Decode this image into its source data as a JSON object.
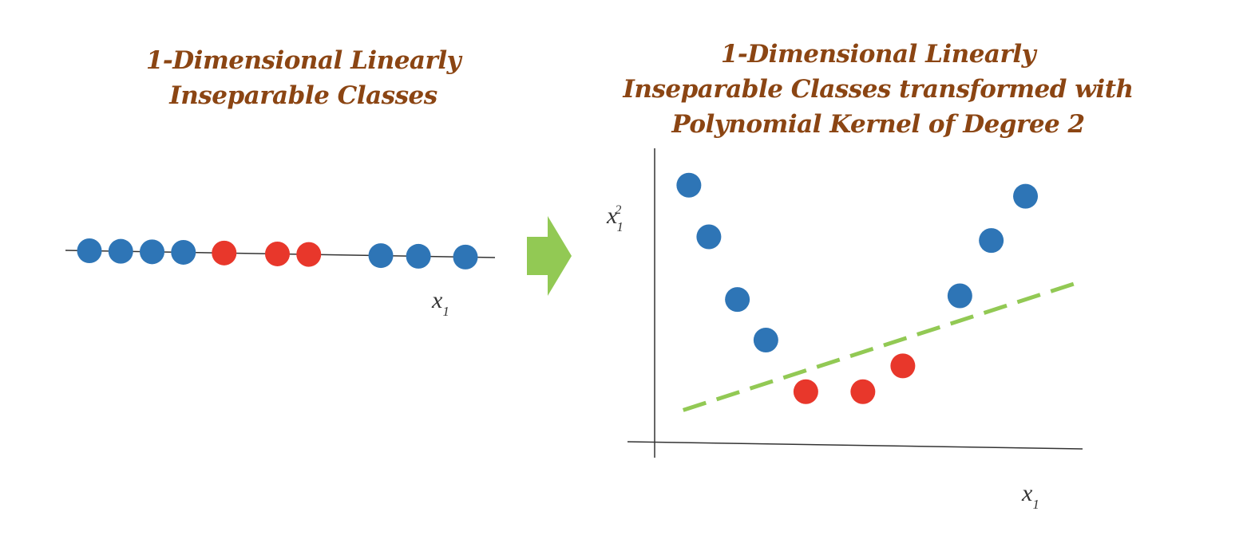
{
  "left_panel": {
    "title_lines": [
      "1-Dimensional Linearly",
      "Inseparable Classes"
    ],
    "axis_label": "x",
    "axis_subscript": "1"
  },
  "right_panel": {
    "title_lines": [
      "1-Dimensional Linearly",
      "Inseparable Classes transformed with",
      "Polynomial Kernel of Degree 2"
    ],
    "x_axis_label": "x",
    "x_axis_subscript": "1",
    "y_axis_label": "x",
    "y_axis_superscript": "2",
    "y_axis_subscript": "1"
  },
  "colors": {
    "title": "#8B4513",
    "class_a": "#2E75B6",
    "class_b": "#E8372B",
    "separator": "#92C954",
    "arrow": "#92C954",
    "axis": "#333333"
  },
  "chart_data": [
    {
      "type": "scatter",
      "title": "1-Dimensional Linearly Inseparable Classes",
      "xlabel": "x1",
      "series": [
        {
          "class": "blue",
          "x": [
            1.0,
            2.0,
            3.0,
            4.0,
            10.3,
            11.5,
            13.0
          ]
        },
        {
          "class": "red",
          "x": [
            5.3,
            7.0,
            8.0
          ]
        }
      ]
    },
    {
      "type": "scatter",
      "title": "1-Dimensional Linearly Inseparable Classes transformed with Polynomial Kernel of Degree 2",
      "xlabel": "x1",
      "ylabel": "x1^2",
      "series": [
        {
          "class": "blue",
          "points": [
            [
              1.2,
              7.0
            ],
            [
              1.9,
              5.6
            ],
            [
              2.9,
              3.9
            ],
            [
              3.9,
              2.8
            ],
            [
              10.7,
              4.0
            ],
            [
              11.8,
              5.5
            ],
            [
              13.0,
              6.7
            ]
          ]
        },
        {
          "class": "red",
          "points": [
            [
              5.3,
              1.4
            ],
            [
              7.3,
              1.4
            ],
            [
              8.7,
              2.1
            ]
          ]
        }
      ],
      "separator": {
        "style": "dashed",
        "from": [
          1.0,
          0.9
        ],
        "to": [
          15.0,
          4.4
        ]
      }
    }
  ]
}
